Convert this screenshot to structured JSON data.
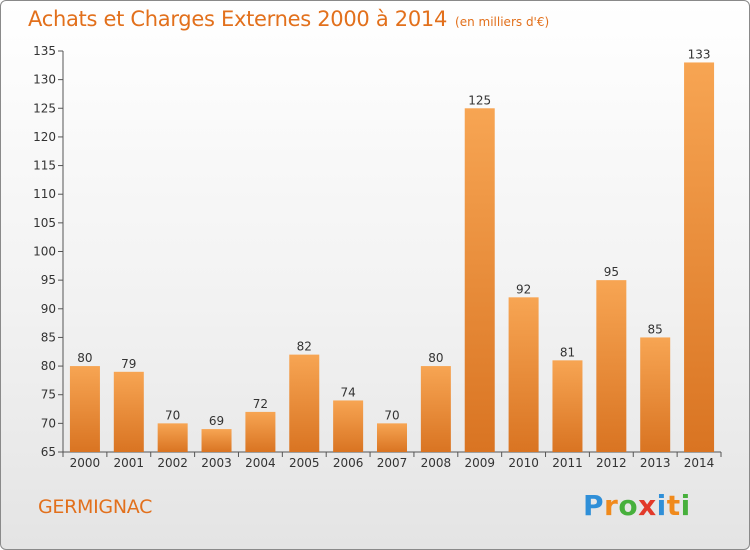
{
  "title": "Achats et Charges Externes 2000 à 2014",
  "subtitle": "(en milliers d'€)",
  "commune": "GERMIGNAC",
  "brand": {
    "letters": [
      "P",
      "r",
      "o",
      "x",
      "i",
      "t",
      "i"
    ],
    "colors": [
      "#2f8fd8",
      "#f08a1c",
      "#47b03c",
      "#e23a2a",
      "#2f8fd8",
      "#f08a1c",
      "#47b03c"
    ]
  },
  "colors": {
    "bar_top": "#f7a553",
    "bar_bottom": "#d97422",
    "accent": "#e2701c"
  },
  "chart_data": {
    "type": "bar",
    "categories": [
      "2000",
      "2001",
      "2002",
      "2003",
      "2004",
      "2005",
      "2006",
      "2007",
      "2008",
      "2009",
      "2010",
      "2011",
      "2012",
      "2013",
      "2014"
    ],
    "values": [
      80,
      79,
      70,
      69,
      72,
      82,
      74,
      70,
      80,
      125,
      92,
      81,
      95,
      85,
      133
    ],
    "ylim": [
      65,
      135
    ],
    "yticks": [
      65,
      70,
      75,
      80,
      85,
      90,
      95,
      100,
      105,
      110,
      115,
      120,
      125,
      130,
      135
    ],
    "grid": false,
    "data_labels": true
  }
}
